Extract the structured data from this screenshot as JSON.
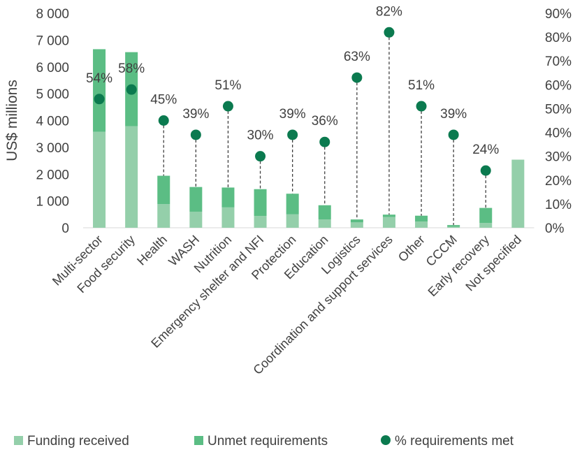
{
  "chart_data": {
    "type": "bar",
    "stacked": true,
    "ylabel": "US$ millions",
    "ylim": [
      0,
      8000
    ],
    "y_ticks": [
      "0",
      "1 000",
      "2 000",
      "3 000",
      "4 000",
      "5 000",
      "6 000",
      "7 000",
      "8 000"
    ],
    "y2lim": [
      0,
      90
    ],
    "y2_ticks": [
      "0%",
      "10%",
      "20%",
      "30%",
      "40%",
      "50%",
      "60%",
      "70%",
      "80%",
      "90%"
    ],
    "categories": [
      "Multi-sector",
      "Food security",
      "Health",
      "WASH",
      "Nutrition",
      "Emergency shelter and NFI",
      "Protection",
      "Education",
      "Logistics",
      "Coordination and support services",
      "Other",
      "CCCM",
      "Early recovery",
      "Not specified"
    ],
    "series": [
      {
        "name": "Funding received",
        "color": "#94cfaa",
        "values": [
          3580,
          3790,
          880,
          600,
          760,
          440,
          500,
          310,
          200,
          400,
          230,
          40,
          180,
          2540
        ]
      },
      {
        "name": "Unmet requirements",
        "color": "#5bbd84",
        "values": [
          3080,
          2760,
          1060,
          920,
          740,
          1000,
          770,
          530,
          110,
          90,
          220,
          60,
          560,
          0
        ]
      }
    ],
    "points": {
      "name": "% requirements met",
      "color": "#0b7a4f",
      "values": [
        54,
        58,
        45,
        39,
        51,
        30,
        39,
        36,
        63,
        82,
        51,
        39,
        24,
        null
      ],
      "labels": [
        "54%",
        "58%",
        "45%",
        "39%",
        "51%",
        "30%",
        "39%",
        "36%",
        "63%",
        "82%",
        "51%",
        "39%",
        "24%",
        ""
      ]
    },
    "legend_position": "bottom",
    "grid": false
  }
}
